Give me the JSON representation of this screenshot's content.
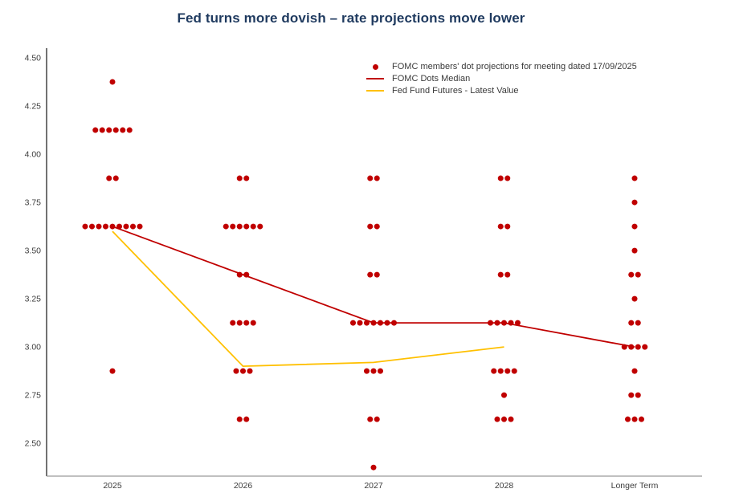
{
  "chart_data": {
    "type": "scatter",
    "title": "Fed turns more dovish – rate projections move lower",
    "categories": [
      "2025",
      "2026",
      "2027",
      "2028",
      "Longer Term"
    ],
    "xlabel": "",
    "ylabel": "",
    "ylim": [
      2.33,
      4.55
    ],
    "yticks": [
      2.5,
      2.75,
      3.0,
      3.25,
      3.5,
      3.75,
      4.0,
      4.25,
      4.5
    ],
    "grid": false,
    "legend_position": "top-right-inside",
    "colors": {
      "title": "#1f3a5f",
      "dots": "#c00000",
      "median_line": "#c00000",
      "futures_line": "#ffc000",
      "y_axis": "#262626",
      "x_axis": "#9a9a9a"
    },
    "legend": [
      {
        "type": "dot",
        "color": "#c00000",
        "label": "FOMC members' dot projections for meeting dated 17/09/2025"
      },
      {
        "type": "line",
        "color": "#c00000",
        "label": "FOMC Dots Median"
      },
      {
        "type": "line",
        "color": "#ffc000",
        "label": "Fed Fund Futures - Latest Value"
      }
    ],
    "dots": {
      "color": "#c00000",
      "by_category": [
        {
          "category": "2025",
          "points": [
            {
              "value": 4.375,
              "count": 1
            },
            {
              "value": 4.125,
              "count": 6
            },
            {
              "value": 3.875,
              "count": 2
            },
            {
              "value": 3.625,
              "count": 9
            },
            {
              "value": 2.875,
              "count": 1
            }
          ]
        },
        {
          "category": "2026",
          "points": [
            {
              "value": 3.875,
              "count": 2
            },
            {
              "value": 3.625,
              "count": 6
            },
            {
              "value": 3.375,
              "count": 2
            },
            {
              "value": 3.125,
              "count": 4
            },
            {
              "value": 2.875,
              "count": 3
            },
            {
              "value": 2.625,
              "count": 2
            }
          ]
        },
        {
          "category": "2027",
          "points": [
            {
              "value": 3.875,
              "count": 2
            },
            {
              "value": 3.625,
              "count": 2
            },
            {
              "value": 3.375,
              "count": 2
            },
            {
              "value": 3.125,
              "count": 7
            },
            {
              "value": 2.875,
              "count": 3
            },
            {
              "value": 2.625,
              "count": 2
            },
            {
              "value": 2.375,
              "count": 1
            }
          ]
        },
        {
          "category": "2028",
          "points": [
            {
              "value": 3.875,
              "count": 2
            },
            {
              "value": 3.625,
              "count": 2
            },
            {
              "value": 3.375,
              "count": 2
            },
            {
              "value": 3.125,
              "count": 5
            },
            {
              "value": 2.875,
              "count": 4
            },
            {
              "value": 2.75,
              "count": 1
            },
            {
              "value": 2.625,
              "count": 3
            }
          ]
        },
        {
          "category": "Longer Term",
          "points": [
            {
              "value": 3.875,
              "count": 1
            },
            {
              "value": 3.75,
              "count": 1
            },
            {
              "value": 3.625,
              "count": 1
            },
            {
              "value": 3.5,
              "count": 1
            },
            {
              "value": 3.375,
              "count": 2
            },
            {
              "value": 3.25,
              "count": 1
            },
            {
              "value": 3.125,
              "count": 2
            },
            {
              "value": 3.0,
              "count": 4
            },
            {
              "value": 2.875,
              "count": 1
            },
            {
              "value": 2.75,
              "count": 2
            },
            {
              "value": 2.625,
              "count": 3
            }
          ]
        }
      ]
    },
    "series": [
      {
        "name": "FOMC Dots Median",
        "color": "#c00000",
        "values": [
          3.625,
          3.375,
          3.125,
          3.125,
          3.0
        ]
      },
      {
        "name": "Fed Fund Futures - Latest Value",
        "color": "#ffc000",
        "values": [
          3.6,
          2.9,
          2.92,
          3.0,
          null
        ]
      }
    ]
  }
}
